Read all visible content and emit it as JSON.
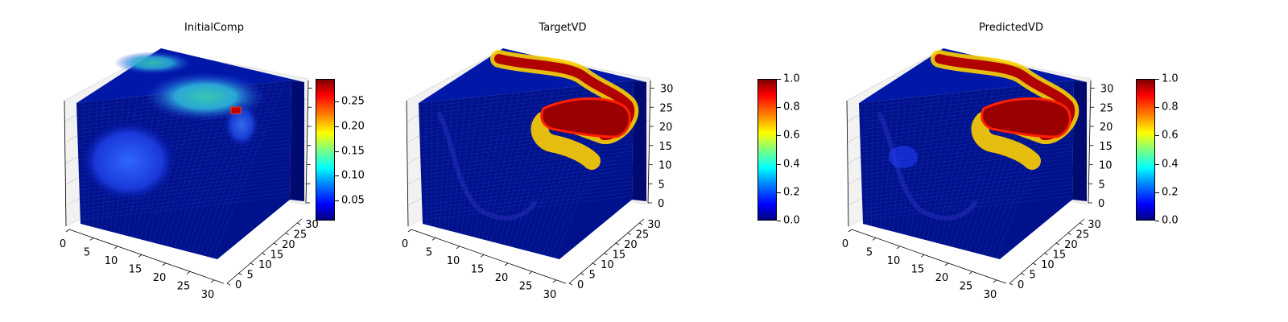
{
  "chart_data": [
    {
      "type": "3d-voxel",
      "title": "InitialComp",
      "axes": {
        "x": {
          "ticks": [
            "0",
            "5",
            "10",
            "15",
            "20",
            "25",
            "30"
          ],
          "range": [
            0,
            32
          ]
        },
        "y": {
          "ticks": [
            "0",
            "5",
            "10",
            "15",
            "20",
            "25",
            "30"
          ],
          "range": [
            0,
            32
          ]
        },
        "z": {
          "ticks": [],
          "range": [
            0,
            32
          ]
        }
      },
      "colormap": "jet",
      "colorbar": {
        "min": 0.01,
        "max": 0.295,
        "ticks": [
          "0.05",
          "0.10",
          "0.15",
          "0.20",
          "0.25"
        ]
      },
      "visible_features": [
        {
          "face": "top",
          "shape": "blob",
          "peak_value": 0.15
        },
        {
          "face": "top",
          "shape": "hotspot",
          "peak_value": 0.29
        },
        {
          "face": "front",
          "shape": "blob",
          "peak_value": 0.07
        }
      ]
    },
    {
      "type": "3d-voxel",
      "title": "TargetVD",
      "axes": {
        "x": {
          "ticks": [
            "0",
            "5",
            "10",
            "15",
            "20",
            "25",
            "30"
          ],
          "range": [
            0,
            32
          ]
        },
        "y": {
          "ticks": [
            "0",
            "5",
            "10",
            "15",
            "20",
            "25",
            "30"
          ],
          "range": [
            0,
            32
          ]
        },
        "z": {
          "ticks": [
            "0",
            "5",
            "10",
            "15",
            "20",
            "25",
            "30"
          ],
          "range": [
            0,
            32
          ]
        }
      },
      "colormap": "jet",
      "colorbar": {
        "min": 0.0,
        "max": 1.0,
        "ticks": [
          "0.0",
          "0.2",
          "0.4",
          "0.6",
          "0.8",
          "1.0"
        ]
      },
      "visible_features": [
        {
          "face": "top",
          "shape": "channel",
          "peak_value": 1.0
        },
        {
          "face": "front",
          "shape": "faint-outline",
          "peak_value": 0.1
        }
      ]
    },
    {
      "type": "3d-voxel",
      "title": "PredictedVD",
      "axes": {
        "x": {
          "ticks": [
            "0",
            "5",
            "10",
            "15",
            "20",
            "25",
            "30"
          ],
          "range": [
            0,
            32
          ]
        },
        "y": {
          "ticks": [
            "0",
            "5",
            "10",
            "15",
            "20",
            "25",
            "30"
          ],
          "range": [
            0,
            32
          ]
        },
        "z": {
          "ticks": [
            "0",
            "5",
            "10",
            "15",
            "20",
            "25",
            "30"
          ],
          "range": [
            0,
            32
          ]
        }
      },
      "colormap": "jet",
      "colorbar": {
        "min": 0.0,
        "max": 1.0,
        "ticks": [
          "0.0",
          "0.2",
          "0.4",
          "0.6",
          "0.8",
          "1.0"
        ]
      },
      "visible_features": [
        {
          "face": "top",
          "shape": "channel",
          "peak_value": 1.0
        },
        {
          "face": "front",
          "shape": "faint-outline",
          "peak_value": 0.15
        }
      ]
    }
  ]
}
